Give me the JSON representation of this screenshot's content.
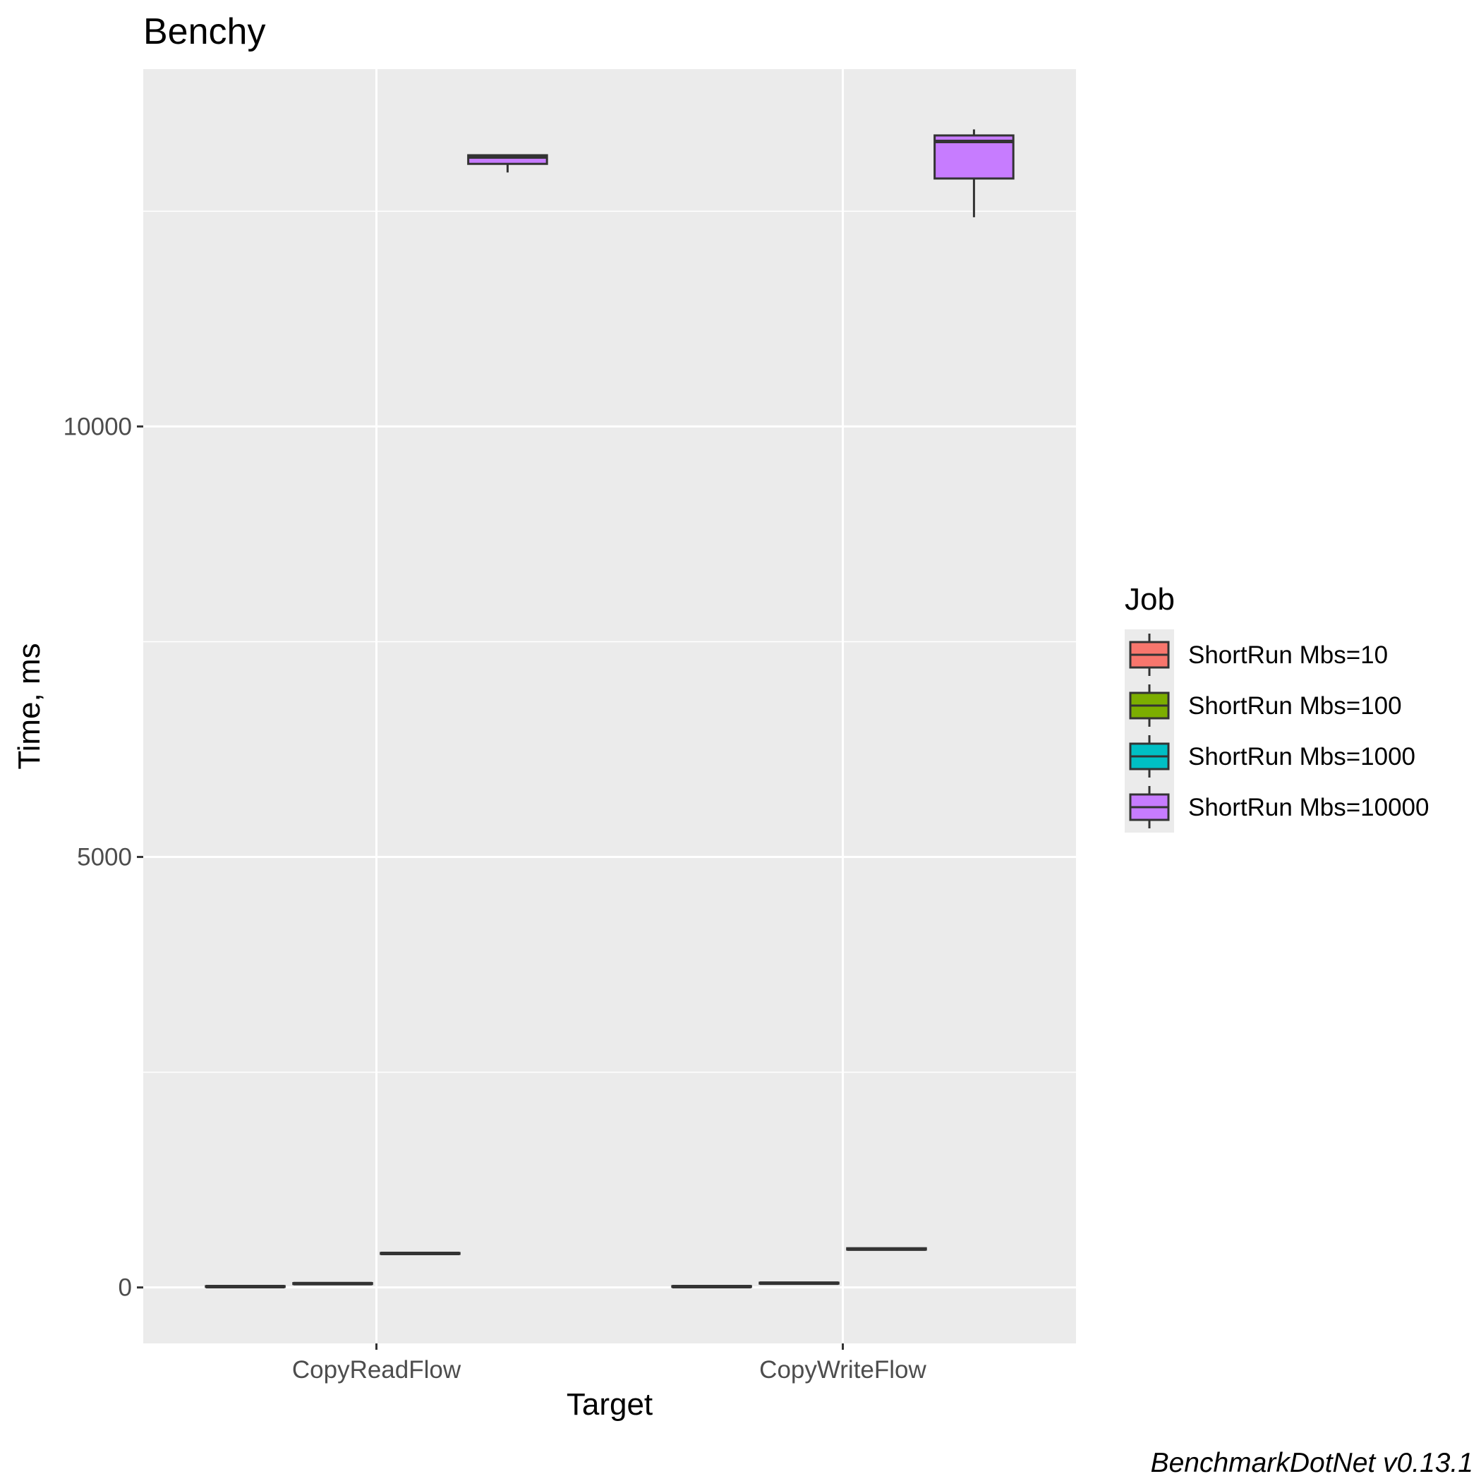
{
  "chart_data": {
    "type": "boxplot",
    "title": "Benchy",
    "xlabel": "Target",
    "ylabel": "Time, ms",
    "caption": "BenchmarkDotNet v0.13.1",
    "categories": [
      "CopyReadFlow",
      "CopyWriteFlow"
    ],
    "y_ticks": [
      0,
      5000,
      10000
    ],
    "ylim": [
      -650,
      14150
    ],
    "grid": true,
    "legend": {
      "title": "Job",
      "position": "right"
    },
    "series": [
      {
        "name": "ShortRun Mbs=10",
        "color": "#F8766D",
        "boxes": [
          {
            "min": 10,
            "q1": 10,
            "median": 10,
            "q3": 15,
            "max": 15
          },
          {
            "min": 10,
            "q1": 10,
            "median": 10,
            "q3": 15,
            "max": 15
          }
        ]
      },
      {
        "name": "ShortRun Mbs=100",
        "color": "#7CAE00",
        "boxes": [
          {
            "min": 40,
            "q1": 40,
            "median": 45,
            "q3": 50,
            "max": 50
          },
          {
            "min": 45,
            "q1": 45,
            "median": 50,
            "q3": 55,
            "max": 55
          }
        ]
      },
      {
        "name": "ShortRun Mbs=1000",
        "color": "#00BFC4",
        "boxes": [
          {
            "min": 390,
            "q1": 390,
            "median": 395,
            "q3": 400,
            "max": 400
          },
          {
            "min": 440,
            "q1": 440,
            "median": 445,
            "q3": 455,
            "max": 455
          }
        ]
      },
      {
        "name": "ShortRun Mbs=10000",
        "color": "#C77CFF",
        "boxes": [
          {
            "min": 12950,
            "q1": 13050,
            "median": 13130,
            "q3": 13150,
            "max": 13150
          },
          {
            "min": 12430,
            "q1": 12880,
            "median": 13310,
            "q3": 13380,
            "max": 13450
          }
        ]
      }
    ]
  }
}
